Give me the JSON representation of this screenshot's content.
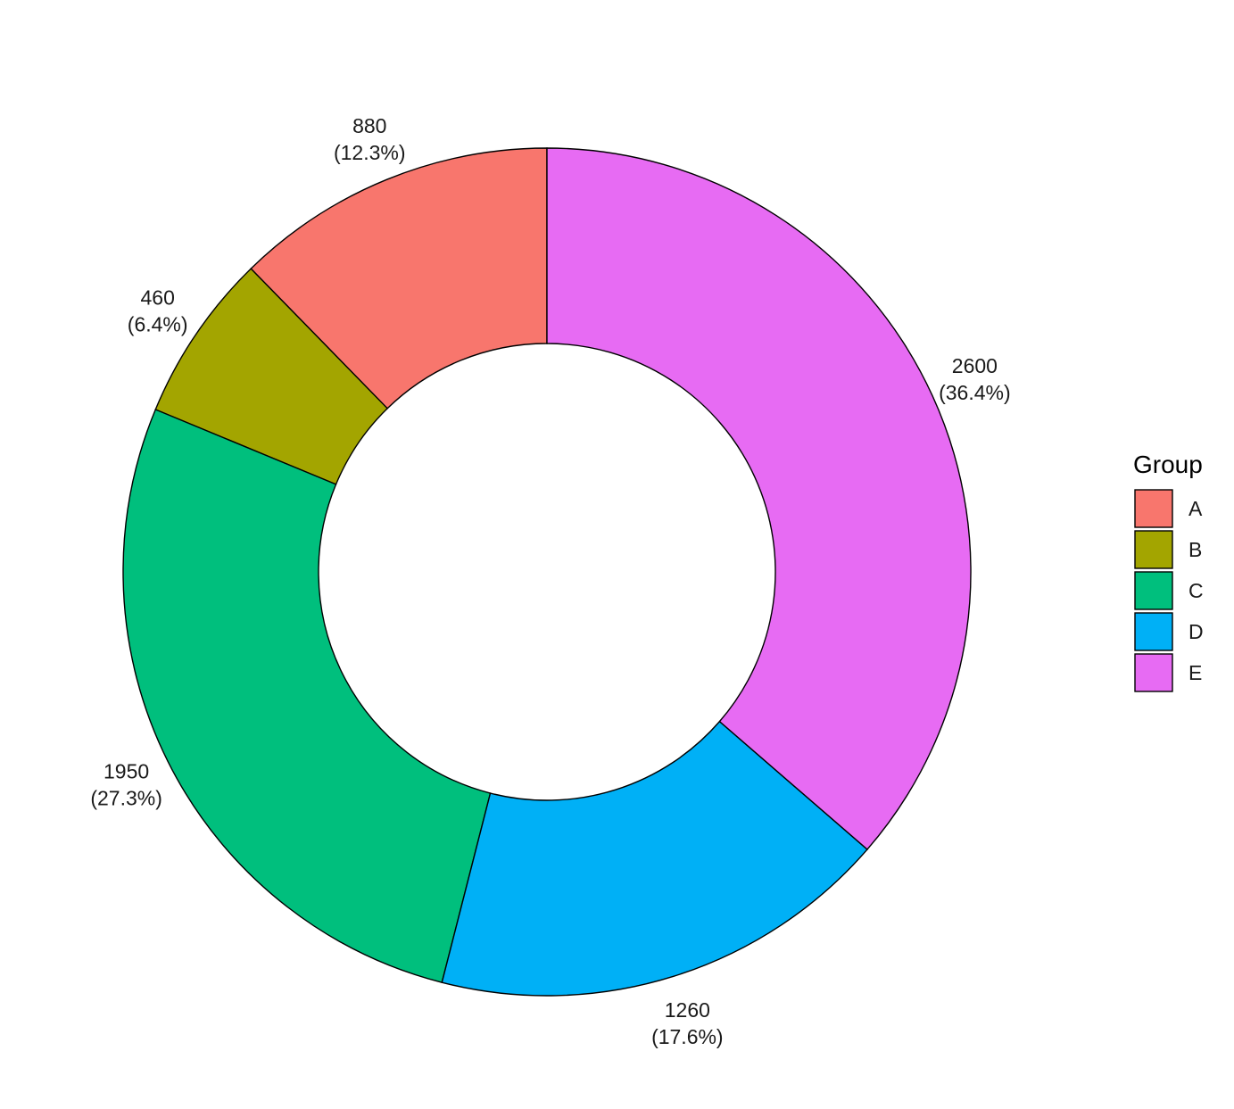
{
  "chart_data": {
    "type": "pie",
    "variant": "donut",
    "categories": [
      "A",
      "B",
      "C",
      "D",
      "E"
    ],
    "values": [
      880,
      460,
      1950,
      1260,
      2600
    ],
    "value_labels": [
      "880",
      "460",
      "1950",
      "1260",
      "2600"
    ],
    "percent_labels": [
      "(12.3%)",
      "(6.4%)",
      "(27.3%)",
      "(17.6%)",
      "(36.4%)"
    ],
    "colors": [
      "#F8766D",
      "#A3A500",
      "#00BF7D",
      "#00B0F6",
      "#E76BF3"
    ],
    "direction": "counterclockwise",
    "start": "top",
    "legend": {
      "title": "Group",
      "placement": "right"
    }
  }
}
